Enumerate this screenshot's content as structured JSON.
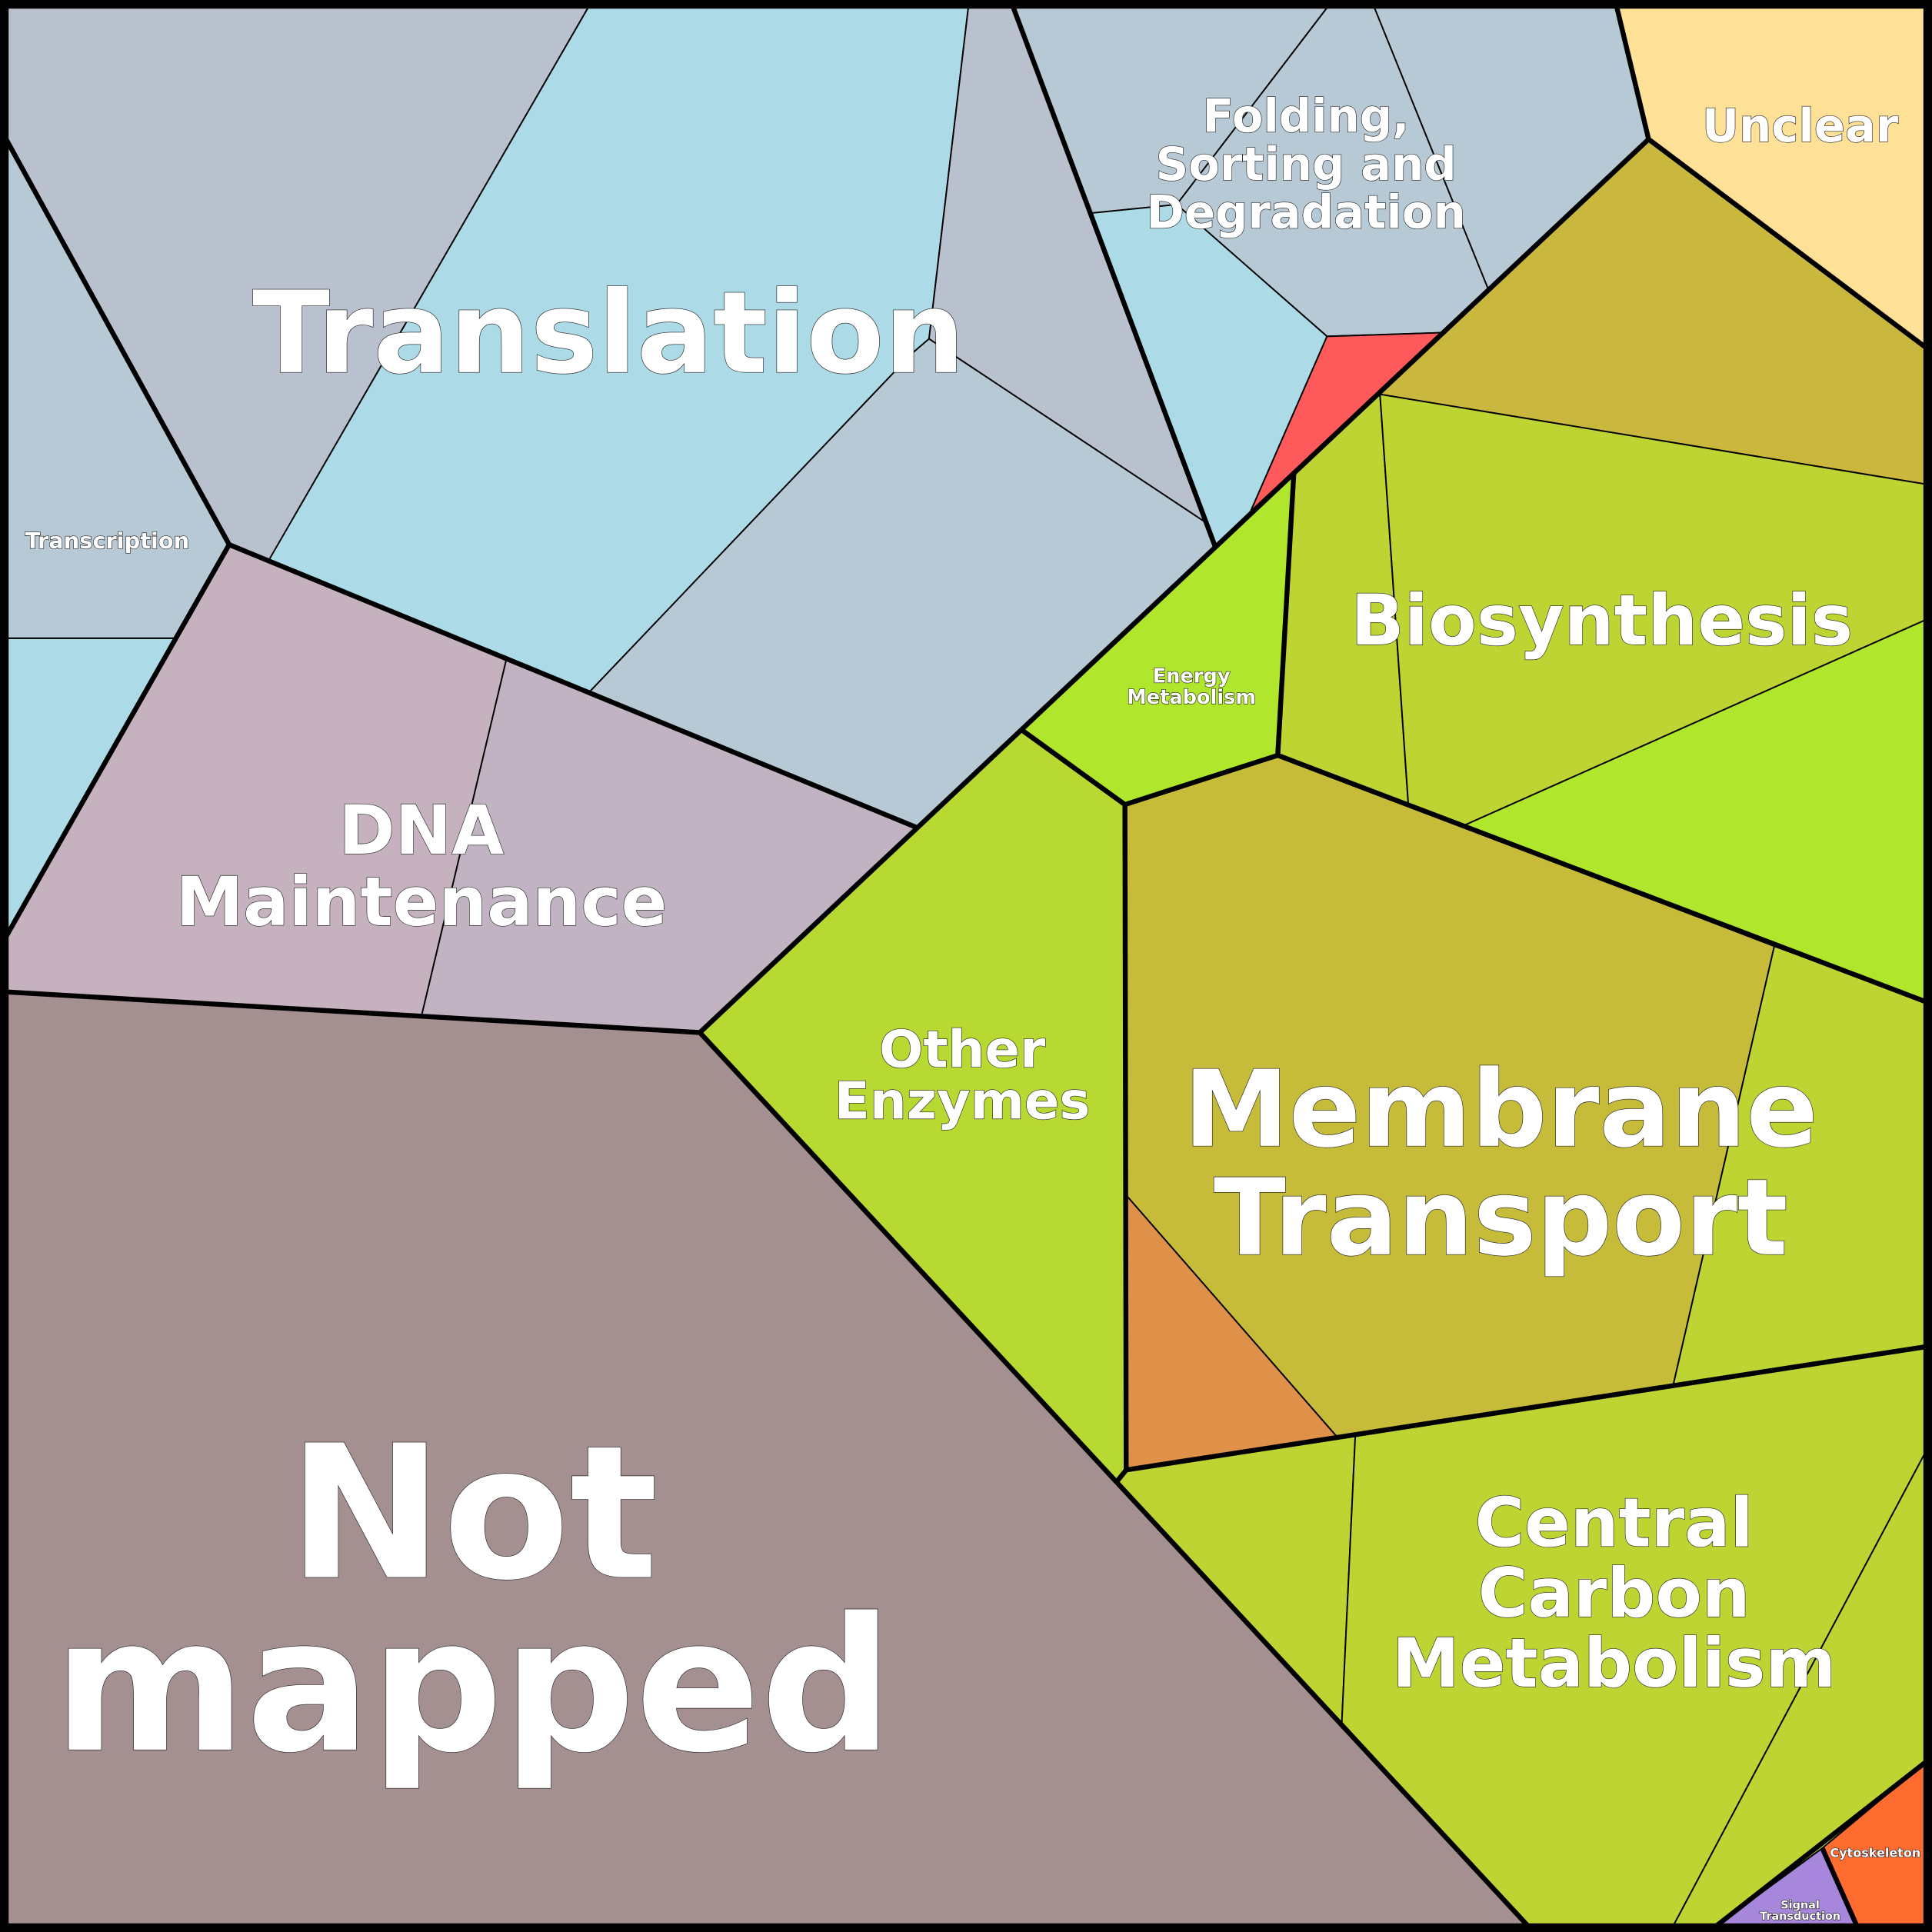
{
  "colors": {
    "genetic_gray": "#bac1ce",
    "genetic_blue": "#acdae6",
    "genetic_steel": "#b7c9d4",
    "dna_1": "#c6b2bf",
    "dna_2": "#c2b3c3",
    "not_mapped": "#a59091",
    "unclear": "#fee196",
    "red_cell": "#fe5a5c",
    "olive": "#cab83e",
    "membrane_olive": "#c6bc3a",
    "yellow_green": "#bdd433",
    "bright_green": "#b0e62c",
    "other_enzymes": "#b8d832",
    "orange_cell": "#df9049",
    "cytoskeleton": "#fe6c30",
    "signal": "#a787dc"
  },
  "labels": {
    "translation": [
      "Translation"
    ],
    "transcription": [
      "Transcription"
    ],
    "folding": [
      "Folding,",
      "Sorting and",
      "Degradation"
    ],
    "unclear": [
      "Unclear"
    ],
    "dna": [
      "DNA",
      "Maintenance"
    ],
    "not_mapped": [
      "Not",
      "mapped"
    ],
    "biosynthesis": [
      "Biosynthesis"
    ],
    "energy": [
      "Energy",
      "Metabolism"
    ],
    "other_enzymes": [
      "Other",
      "Enzymes"
    ],
    "membrane": [
      "Membrane",
      "Transport"
    ],
    "central_carbon": [
      "Central",
      "Carbon",
      "Metabolism"
    ],
    "cytoskeleton": [
      "Cytoskeleton"
    ],
    "signal": [
      "Signal",
      "Transduction"
    ]
  }
}
